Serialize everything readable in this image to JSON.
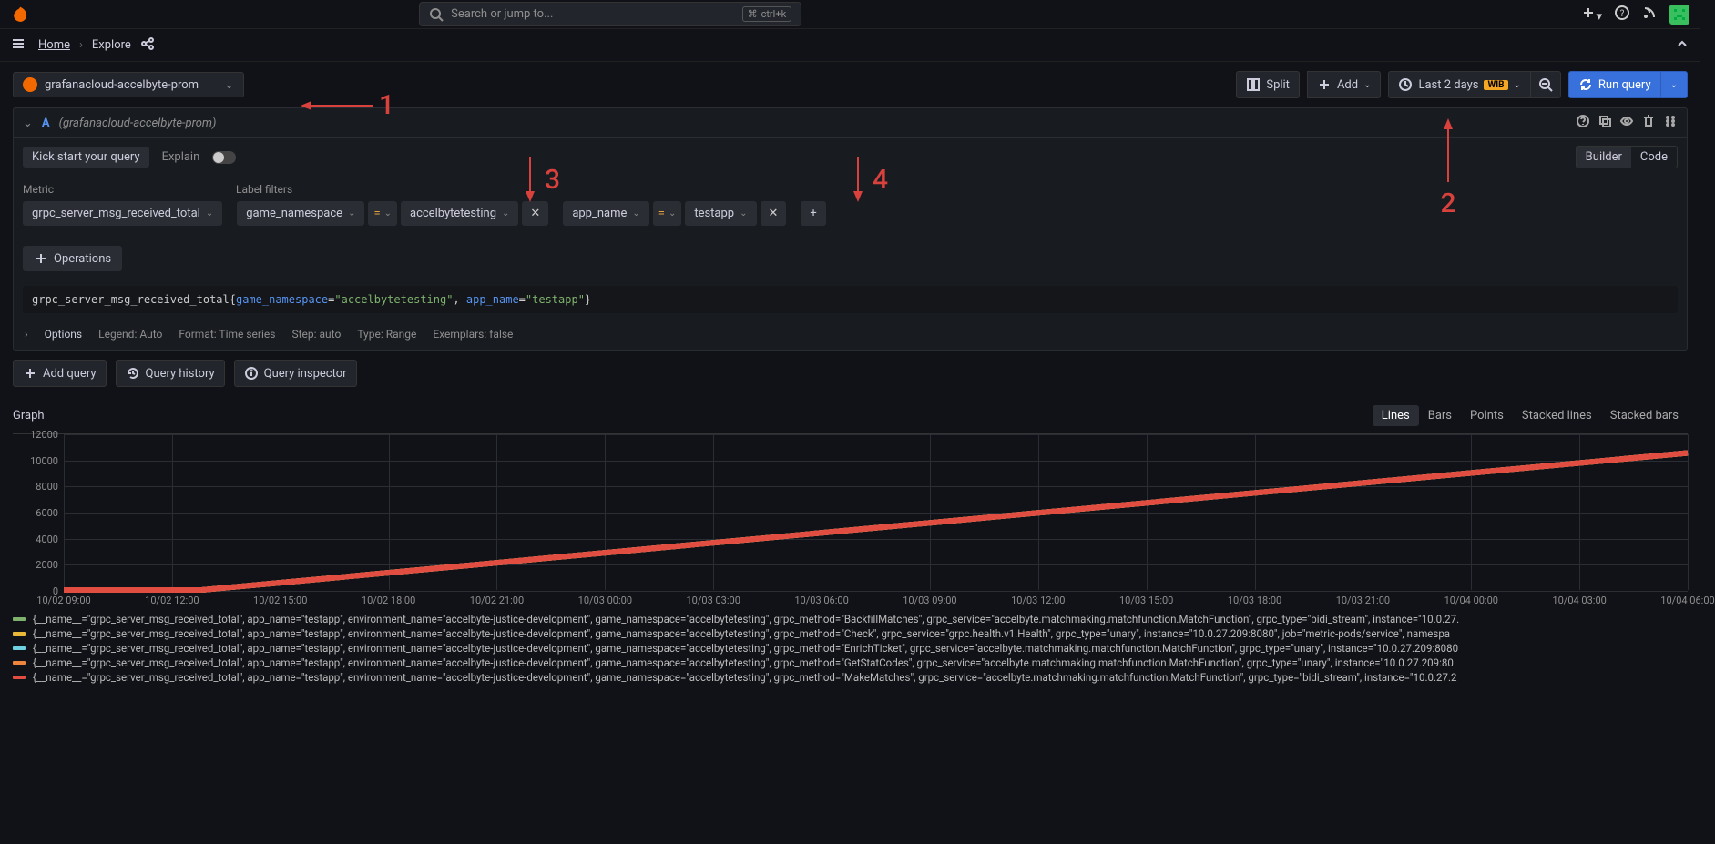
{
  "top": {
    "search_placeholder": "Search or jump to...",
    "kbd": "ctrl+k"
  },
  "crumbs": {
    "home": "Home",
    "explore": "Explore"
  },
  "datasource": {
    "name": "grafanacloud-accelbyte-prom"
  },
  "toolbar": {
    "split": "Split",
    "add": "Add",
    "timerange": "Last 2 days",
    "tz_badge": "WIB",
    "run": "Run query"
  },
  "query": {
    "letter": "A",
    "ds_hint": "(grafanacloud-accelbyte-prom)",
    "kick": "Kick start your query",
    "explain": "Explain",
    "mode_builder": "Builder",
    "mode_code": "Code",
    "metric_label": "Metric",
    "filters_label": "Label filters",
    "metric": "grpc_server_msg_received_total",
    "filters": [
      {
        "key": "game_namespace",
        "op": "=",
        "val": "accelbytetesting"
      },
      {
        "key": "app_name",
        "op": "=",
        "val": "testapp"
      }
    ],
    "ops_btn": "Operations",
    "code": {
      "metric": "grpc_server_msg_received_total",
      "k1": "game_namespace",
      "v1": "\"accelbytetesting\"",
      "k2": "app_name",
      "v2": "\"testapp\""
    },
    "options": {
      "label": "Options",
      "legend": "Legend: Auto",
      "format": "Format: Time series",
      "step": "Step: auto",
      "type": "Type: Range",
      "exemplars": "Exemplars: false"
    }
  },
  "actions": {
    "add_query": "Add query",
    "history": "Query history",
    "inspector": "Query inspector"
  },
  "graph": {
    "title": "Graph",
    "tabs": [
      "Lines",
      "Bars",
      "Points",
      "Stacked lines",
      "Stacked bars"
    ],
    "active_tab": "Lines",
    "yticks": [
      0,
      2000,
      4000,
      6000,
      8000,
      10000,
      12000
    ],
    "ylim": [
      0,
      12000
    ],
    "xticks": [
      "10/02 09:00",
      "10/02 12:00",
      "10/02 15:00",
      "10/02 18:00",
      "10/02 21:00",
      "10/03 00:00",
      "10/03 03:00",
      "10/03 06:00",
      "10/03 09:00",
      "10/03 12:00",
      "10/03 15:00",
      "10/03 18:00",
      "10/03 21:00",
      "10/04 00:00",
      "10/04 03:00",
      "10/04 06:00"
    ],
    "grid_color": "#2a2d33",
    "bg": "#111217",
    "series": [
      {
        "color": "#7eb26d",
        "x0": 0.085,
        "y0": 0,
        "y1": 0.88
      },
      {
        "color": "#eab839",
        "x0": 0.085,
        "y0": 0,
        "y1": 0.88
      },
      {
        "color": "#6ed0e0",
        "x0": 0.085,
        "y0": 0,
        "y1": 0.88
      },
      {
        "color": "#ef843c",
        "x0": 0.085,
        "y0": 0,
        "y1": 0.88
      },
      {
        "color": "#e24d42",
        "x0": 0.085,
        "y0": 0,
        "y1": 0.88
      }
    ],
    "legend": [
      {
        "color": "#7eb26d",
        "text": "{__name__=\"grpc_server_msg_received_total\", app_name=\"testapp\", environment_name=\"accelbyte-justice-development\", game_namespace=\"accelbytetesting\", grpc_method=\"BackfillMatches\", grpc_service=\"accelbyte.matchmaking.matchfunction.MatchFunction\", grpc_type=\"bidi_stream\", instance=\"10.0.27."
      },
      {
        "color": "#eab839",
        "text": "{__name__=\"grpc_server_msg_received_total\", app_name=\"testapp\", environment_name=\"accelbyte-justice-development\", game_namespace=\"accelbytetesting\", grpc_method=\"Check\", grpc_service=\"grpc.health.v1.Health\", grpc_type=\"unary\", instance=\"10.0.27.209:8080\", job=\"metric-pods/service\", namespa"
      },
      {
        "color": "#6ed0e0",
        "text": "{__name__=\"grpc_server_msg_received_total\", app_name=\"testapp\", environment_name=\"accelbyte-justice-development\", game_namespace=\"accelbytetesting\", grpc_method=\"EnrichTicket\", grpc_service=\"accelbyte.matchmaking.matchfunction.MatchFunction\", grpc_type=\"unary\", instance=\"10.0.27.209:8080"
      },
      {
        "color": "#ef843c",
        "text": "{__name__=\"grpc_server_msg_received_total\", app_name=\"testapp\", environment_name=\"accelbyte-justice-development\", game_namespace=\"accelbytetesting\", grpc_method=\"GetStatCodes\", grpc_service=\"accelbyte.matchmaking.matchfunction.MatchFunction\", grpc_type=\"unary\", instance=\"10.0.27.209:80"
      },
      {
        "color": "#e24d42",
        "text": "{__name__=\"grpc_server_msg_received_total\", app_name=\"testapp\", environment_name=\"accelbyte-justice-development\", game_namespace=\"accelbytetesting\", grpc_method=\"MakeMatches\", grpc_service=\"accelbyte.matchmaking.matchfunction.MatchFunction\", grpc_type=\"bidi_stream\", instance=\"10.0.27.2"
      }
    ]
  },
  "annotations": {
    "a1": "1",
    "a2": "2",
    "a3": "3",
    "a4": "4"
  }
}
